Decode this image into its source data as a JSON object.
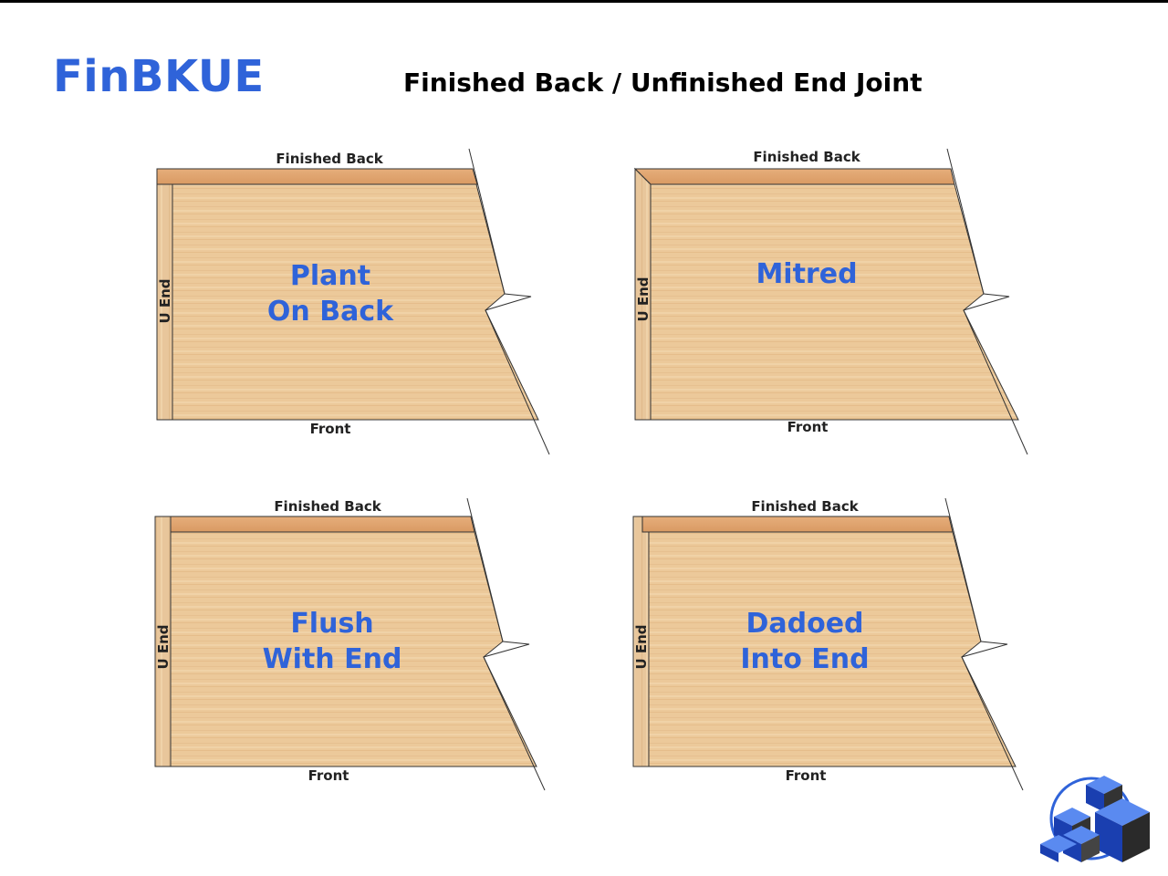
{
  "header": {
    "brand": "FinBKUE",
    "title": "Finished Back / Unfinished End Joint"
  },
  "colors": {
    "brand_blue": "#2f63d9",
    "panel_wood": "#ecc99a",
    "back_wood": "#dfa36f",
    "end_wood": "#e8c69b"
  },
  "labels": {
    "back": "Finished Back",
    "front": "Front",
    "end": "U End"
  },
  "panels": [
    {
      "id": "plant-on-back",
      "lines": [
        "Plant",
        "On Back"
      ]
    },
    {
      "id": "mitred",
      "lines": [
        "Mitred"
      ]
    },
    {
      "id": "flush-with-end",
      "lines": [
        "Flush",
        "With End"
      ]
    },
    {
      "id": "dadoed-into-end",
      "lines": [
        "Dadoed",
        "Into End"
      ]
    }
  ],
  "logo_icon": "cube-cluster-logo"
}
